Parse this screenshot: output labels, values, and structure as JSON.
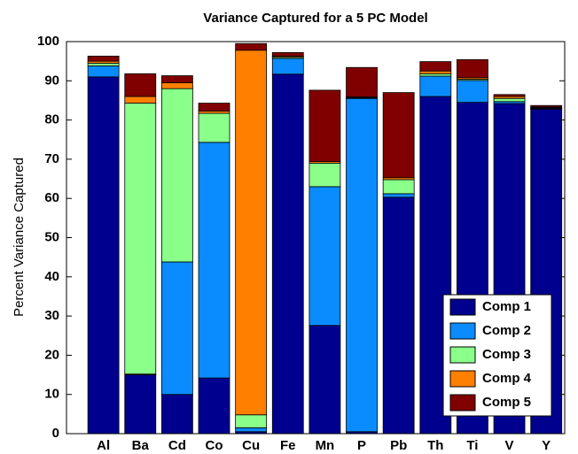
{
  "chart_data": {
    "type": "stacked_bar",
    "title": "Variance Captured for a 5 PC Model",
    "y_label": "Percent Variance Captured",
    "categories": [
      "Al",
      "Ba",
      "Cd",
      "Co",
      "Cu",
      "Fe",
      "Mn",
      "P",
      "Pb",
      "Th",
      "Ti",
      "V",
      "Y"
    ],
    "series": [
      {
        "name": "Comp 1",
        "color": "#00008f",
        "values": [
          91,
          15,
          10,
          14.2,
          0.5,
          91.7,
          27.6,
          0.5,
          60.3,
          86,
          84.5,
          84.2,
          82.8
        ]
      },
      {
        "name": "Comp 2",
        "color": "#0a8cff",
        "values": [
          2.8,
          0.2,
          33.8,
          60.1,
          1.0,
          4.0,
          35.4,
          85,
          0.9,
          5.2,
          5.6,
          0.5,
          0.2
        ]
      },
      {
        "name": "Comp 3",
        "color": "#8aff8a",
        "values": [
          0.7,
          69.1,
          44.2,
          7.4,
          3.3,
          0.3,
          6.0,
          0.2,
          3.6,
          0.6,
          0.3,
          0.8,
          0.1
        ]
      },
      {
        "name": "Comp 4",
        "color": "#ff7f00",
        "values": [
          0.5,
          1.7,
          1.5,
          0.6,
          93,
          0.3,
          0.4,
          0.2,
          0.5,
          0.7,
          0.4,
          0.5,
          0.2
        ]
      },
      {
        "name": "Comp 5",
        "color": "#800000",
        "values": [
          1.3,
          5.8,
          1.8,
          2.0,
          1.7,
          0.9,
          18.2,
          7.5,
          21.7,
          2.4,
          4.6,
          0.5,
          0.4
        ]
      }
    ],
    "ylim": [
      0,
      100
    ],
    "yticks": [
      0,
      10,
      20,
      30,
      40,
      50,
      60,
      70,
      80,
      90,
      100
    ],
    "legend": "lower right"
  }
}
